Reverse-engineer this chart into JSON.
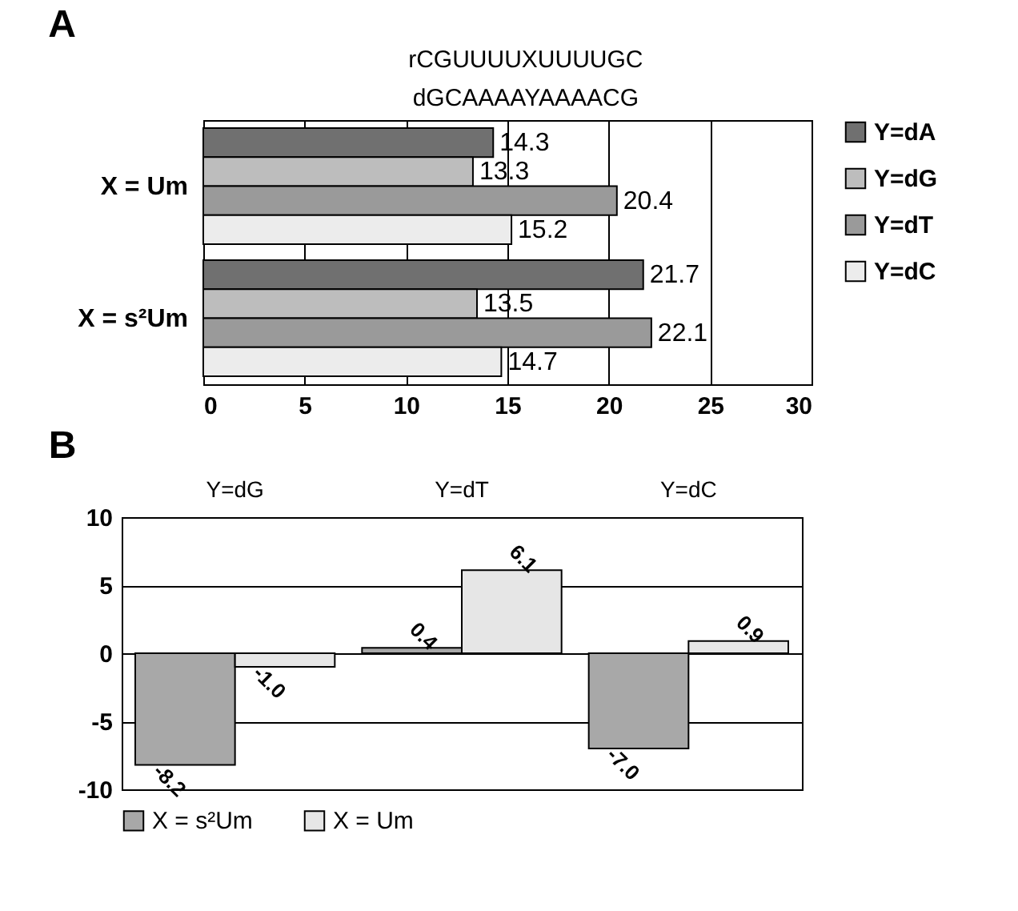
{
  "chart_data": [
    {
      "type": "bar",
      "title": "A",
      "orientation": "horizontal",
      "annotations": [
        "rCGUUUUXUUUUGC",
        "dGCAAAAYAAAACG"
      ],
      "categories": [
        "X = Um",
        "X = s²Um"
      ],
      "series": [
        {
          "name": "Y=dA",
          "color": "#707070",
          "values": [
            14.3,
            21.7
          ]
        },
        {
          "name": "Y=dG",
          "color": "#bdbdbd",
          "values": [
            13.3,
            13.5
          ]
        },
        {
          "name": "Y=dT",
          "color": "#9a9a9a",
          "values": [
            20.4,
            22.1
          ]
        },
        {
          "name": "Y=dC",
          "color": "#ececec",
          "values": [
            15.2,
            14.7
          ]
        }
      ],
      "xlim": [
        0,
        30
      ],
      "xticks": [
        0,
        5,
        10,
        15,
        20,
        25,
        30
      ],
      "grid": "x",
      "legend": "right",
      "data_labels": true
    },
    {
      "type": "bar",
      "title": "B",
      "categories": [
        "Y=dG",
        "Y=dT",
        "Y=dC"
      ],
      "series": [
        {
          "name": "X = s²Um",
          "color": "#a8a8a8",
          "values": [
            -8.2,
            0.4,
            -7.0
          ],
          "value_labels": [
            "-8.2",
            "0.4",
            "-7.0"
          ]
        },
        {
          "name": "X = Um",
          "color": "#e6e6e6",
          "values": [
            -1.0,
            6.1,
            0.9
          ],
          "value_labels": [
            "-1.0",
            "6.1",
            "0.9"
          ]
        }
      ],
      "ylim": [
        -10,
        10
      ],
      "yticks": [
        -10,
        -5,
        0,
        5,
        10
      ],
      "grid": "y",
      "legend": "bottom"
    }
  ]
}
